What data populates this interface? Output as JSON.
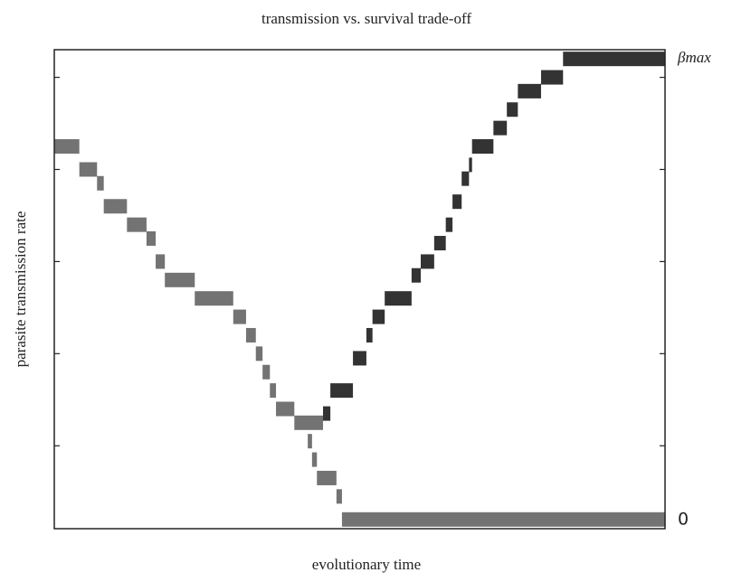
{
  "chart_data": {
    "type": "step-blocks",
    "title": "transmission vs. survival trade-off",
    "xlabel": "evolutionary time",
    "ylabel": "parasite transmission rate",
    "xlim": [
      0,
      100
    ],
    "ylim": [
      -0.02,
      1.02
    ],
    "yticks": [
      0.16,
      0.36,
      0.56,
      0.76,
      0.96
    ],
    "y2ticks": [
      {
        "value": 1,
        "label": "βmax"
      },
      0
    ],
    "series": [
      {
        "color": "#737373",
        "x": [
          0,
          4.1,
          7.0,
          8.1,
          11.9,
          15.1,
          16.6,
          18.1,
          23.0,
          29.3,
          31.4,
          33.0,
          34.1,
          35.3,
          36.3,
          39.3,
          41.5,
          42.2,
          43.0,
          46.2,
          47.1
        ],
        "x_end": [
          4.1,
          7.0,
          8.1,
          11.9,
          15.1,
          16.6,
          18.1,
          23.0,
          29.3,
          31.4,
          33.0,
          34.1,
          35.3,
          36.3,
          39.3,
          44.0,
          42.2,
          43.0,
          46.2,
          47.1,
          100
        ],
        "values": [
          0.81,
          0.76,
          0.73,
          0.68,
          0.64,
          0.61,
          0.56,
          0.52,
          0.48,
          0.44,
          0.4,
          0.36,
          0.32,
          0.28,
          0.24,
          0.21,
          0.17,
          0.13,
          0.09,
          0.05,
          0
        ]
      },
      {
        "color": "#333333",
        "x": [
          44.0,
          45.2,
          48.9,
          51.1,
          52.1,
          54.1,
          58.5,
          60.0,
          62.2,
          64.1,
          65.2,
          66.7,
          67.9,
          68.4,
          71.9,
          74.1,
          75.9,
          79.7,
          83.3
        ],
        "x_end": [
          45.2,
          48.9,
          51.1,
          52.1,
          54.1,
          58.5,
          60.0,
          62.2,
          64.1,
          65.2,
          66.7,
          67.9,
          68.4,
          71.9,
          74.1,
          75.9,
          79.7,
          83.3,
          100
        ],
        "values": [
          0.23,
          0.28,
          0.35,
          0.4,
          0.44,
          0.48,
          0.53,
          0.56,
          0.6,
          0.64,
          0.69,
          0.74,
          0.77,
          0.81,
          0.85,
          0.89,
          0.93,
          0.96,
          1
        ]
      }
    ]
  }
}
